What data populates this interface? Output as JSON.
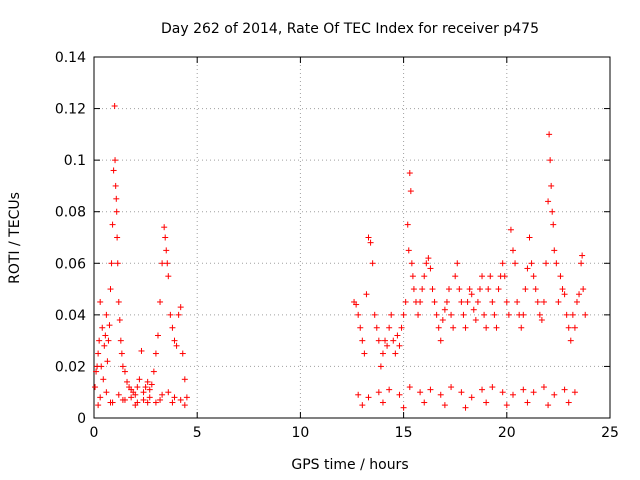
{
  "chart_data": {
    "type": "scatter",
    "title": "Day 262 of 2014, Rate Of TEC Index for receiver p475",
    "xlabel": "GPS time / hours",
    "ylabel": "ROTI / TECUs",
    "xlim": [
      0,
      25
    ],
    "ylim": [
      0,
      0.14
    ],
    "x_ticks": [
      0,
      5,
      10,
      15,
      20,
      25
    ],
    "y_ticks": [
      0,
      0.02,
      0.04,
      0.06,
      0.08,
      0.1,
      0.12,
      0.14
    ],
    "x_tick_labels": [
      "0",
      "5",
      "10",
      "15",
      "20",
      "25"
    ],
    "y_tick_labels": [
      "0",
      "0.02",
      "0.04",
      "0.06",
      "0.08",
      "0.1",
      "0.12",
      "0.14"
    ],
    "grid": true,
    "marker": "+",
    "series": [
      {
        "name": "ROTI",
        "color": "#ff0000",
        "x": [
          0.05,
          0.1,
          0.15,
          0.2,
          0.25,
          0.3,
          0.35,
          0.4,
          0.45,
          0.5,
          0.55,
          0.6,
          0.65,
          0.7,
          0.75,
          0.8,
          0.85,
          0.9,
          0.95,
          1.0,
          1.02,
          1.05,
          1.08,
          1.1,
          1.12,
          1.15,
          1.2,
          1.25,
          1.3,
          1.35,
          1.4,
          1.5,
          1.6,
          1.7,
          1.8,
          1.9,
          2.0,
          2.1,
          2.2,
          2.3,
          2.4,
          2.5,
          2.6,
          2.7,
          2.8,
          2.9,
          3.0,
          3.1,
          3.2,
          3.3,
          3.4,
          3.45,
          3.5,
          3.55,
          3.6,
          3.7,
          3.8,
          3.9,
          4.0,
          4.1,
          4.2,
          4.3,
          4.4,
          4.5,
          0.3,
          0.6,
          0.9,
          1.2,
          1.5,
          1.8,
          2.1,
          2.4,
          2.7,
          3.0,
          3.3,
          3.6,
          3.9,
          4.2,
          0.2,
          0.8,
          1.4,
          2.0,
          2.6,
          3.2,
          3.8,
          4.4,
          12.6,
          12.7,
          12.8,
          12.9,
          13.0,
          13.1,
          13.2,
          13.3,
          13.4,
          13.5,
          13.6,
          13.7,
          13.8,
          13.9,
          14.0,
          14.1,
          14.2,
          14.3,
          14.4,
          14.5,
          14.6,
          14.7,
          14.8,
          14.9,
          15.0,
          15.1,
          15.2,
          15.25,
          15.3,
          15.35,
          15.4,
          15.45,
          15.5,
          15.6,
          15.7,
          15.8,
          15.9,
          16.0,
          16.1,
          16.2,
          16.3,
          16.4,
          16.5,
          16.6,
          16.7,
          16.8,
          16.9,
          17.0,
          17.1,
          17.2,
          17.3,
          17.4,
          17.5,
          17.6,
          17.7,
          17.8,
          17.9,
          18.0,
          18.1,
          18.2,
          18.3,
          18.4,
          18.5,
          18.6,
          18.7,
          18.8,
          18.9,
          19.0,
          19.1,
          19.2,
          19.3,
          19.4,
          19.5,
          19.6,
          19.7,
          19.8,
          19.9,
          20.0,
          20.1,
          20.2,
          20.3,
          20.4,
          20.5,
          20.6,
          20.7,
          20.8,
          20.9,
          21.0,
          21.1,
          21.2,
          21.3,
          21.4,
          21.5,
          21.6,
          21.7,
          21.8,
          21.9,
          22.0,
          22.05,
          22.1,
          22.15,
          22.2,
          22.25,
          22.3,
          22.4,
          22.5,
          22.6,
          22.7,
          22.8,
          22.9,
          23.0,
          23.1,
          23.2,
          23.3,
          23.4,
          23.5,
          23.6,
          23.65,
          23.7,
          23.8,
          12.8,
          13.3,
          13.8,
          14.3,
          14.8,
          15.3,
          15.8,
          16.3,
          16.8,
          17.3,
          17.8,
          18.3,
          18.8,
          19.3,
          19.8,
          20.3,
          20.8,
          21.3,
          21.8,
          22.3,
          22.8,
          23.3,
          13.0,
          14.0,
          15.0,
          16.0,
          17.0,
          18.0,
          19.0,
          20.0,
          21.0,
          22.0,
          23.0
        ],
        "y": [
          0.012,
          0.018,
          0.02,
          0.025,
          0.03,
          0.045,
          0.02,
          0.035,
          0.015,
          0.028,
          0.032,
          0.04,
          0.022,
          0.03,
          0.036,
          0.05,
          0.06,
          0.075,
          0.096,
          0.121,
          0.1,
          0.09,
          0.085,
          0.08,
          0.07,
          0.06,
          0.045,
          0.038,
          0.03,
          0.025,
          0.02,
          0.018,
          0.014,
          0.012,
          0.011,
          0.01,
          0.009,
          0.012,
          0.015,
          0.026,
          0.01,
          0.012,
          0.014,
          0.011,
          0.013,
          0.018,
          0.025,
          0.032,
          0.045,
          0.06,
          0.074,
          0.07,
          0.065,
          0.06,
          0.055,
          0.04,
          0.035,
          0.03,
          0.028,
          0.04,
          0.043,
          0.025,
          0.015,
          0.008,
          0.008,
          0.01,
          0.006,
          0.009,
          0.007,
          0.008,
          0.006,
          0.007,
          0.008,
          0.006,
          0.009,
          0.01,
          0.008,
          0.007,
          0.005,
          0.006,
          0.007,
          0.005,
          0.006,
          0.007,
          0.006,
          0.005,
          0.045,
          0.044,
          0.04,
          0.035,
          0.03,
          0.025,
          0.048,
          0.07,
          0.068,
          0.06,
          0.04,
          0.035,
          0.03,
          0.02,
          0.025,
          0.03,
          0.028,
          0.035,
          0.04,
          0.03,
          0.025,
          0.032,
          0.028,
          0.035,
          0.04,
          0.045,
          0.075,
          0.065,
          0.095,
          0.088,
          0.06,
          0.055,
          0.05,
          0.045,
          0.04,
          0.045,
          0.05,
          0.055,
          0.06,
          0.062,
          0.058,
          0.05,
          0.045,
          0.04,
          0.035,
          0.03,
          0.038,
          0.042,
          0.045,
          0.05,
          0.04,
          0.035,
          0.055,
          0.06,
          0.05,
          0.045,
          0.04,
          0.035,
          0.045,
          0.05,
          0.048,
          0.042,
          0.038,
          0.045,
          0.05,
          0.055,
          0.04,
          0.035,
          0.05,
          0.055,
          0.045,
          0.04,
          0.035,
          0.05,
          0.055,
          0.06,
          0.055,
          0.045,
          0.04,
          0.073,
          0.065,
          0.06,
          0.045,
          0.04,
          0.035,
          0.04,
          0.05,
          0.058,
          0.07,
          0.06,
          0.055,
          0.05,
          0.045,
          0.04,
          0.038,
          0.045,
          0.06,
          0.084,
          0.11,
          0.1,
          0.09,
          0.08,
          0.075,
          0.065,
          0.06,
          0.045,
          0.055,
          0.05,
          0.048,
          0.04,
          0.035,
          0.03,
          0.04,
          0.035,
          0.045,
          0.048,
          0.06,
          0.063,
          0.05,
          0.04,
          0.009,
          0.008,
          0.01,
          0.011,
          0.009,
          0.012,
          0.01,
          0.011,
          0.009,
          0.012,
          0.01,
          0.008,
          0.011,
          0.012,
          0.01,
          0.009,
          0.011,
          0.01,
          0.012,
          0.009,
          0.011,
          0.01,
          0.005,
          0.006,
          0.004,
          0.006,
          0.005,
          0.004,
          0.006,
          0.005,
          0.006,
          0.005,
          0.006
        ]
      }
    ]
  }
}
